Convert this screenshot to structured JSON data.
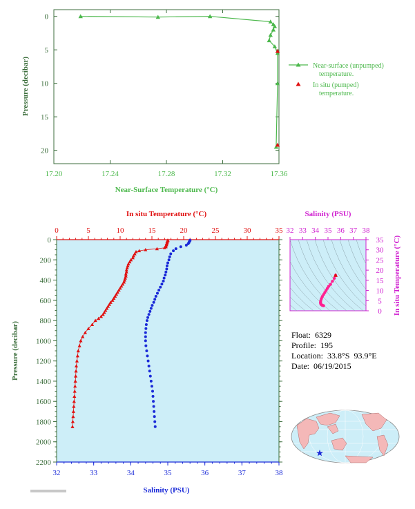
{
  "colors": {
    "green": "#4cb84c",
    "axis_green": "#3c6e3c",
    "red": "#e01010",
    "blue": "#1a2ad8",
    "magenta": "#d020d0",
    "pink": "#ff2090",
    "panel_bg": "#cdeef8",
    "land": "#f4b8b8"
  },
  "top_chart": {
    "xlabel": "Near-Surface Temperature (°C)",
    "ylabel": "Pressure (decibar)",
    "xticks": [
      "17.20",
      "17.24",
      "17.28",
      "17.32",
      "17.36"
    ],
    "yticks": [
      "0",
      "5",
      "10",
      "15",
      "20"
    ],
    "legend": [
      {
        "line1": "Near-surface (unpumped)",
        "line2": "temperature."
      },
      {
        "line1": "In situ (pumped)",
        "line2": "temperature."
      }
    ]
  },
  "bottom_chart": {
    "top_xlabel": "In situ Temperature (°C)",
    "bottom_xlabel": "Salinity (PSU)",
    "ylabel": "Pressure (decibar)",
    "temp_ticks": [
      "0",
      "5",
      "10",
      "15",
      "20",
      "25",
      "30",
      "35"
    ],
    "sal_ticks": [
      "32",
      "33",
      "34",
      "35",
      "36",
      "37",
      "38"
    ],
    "pressure_ticks": [
      "0",
      "200",
      "400",
      "600",
      "800",
      "1000",
      "1200",
      "1400",
      "1600",
      "1800",
      "2000",
      "2200"
    ]
  },
  "ts_chart": {
    "xlabel": "Salinity (PSU)",
    "ylabel": "In situ Temperature (°C)",
    "xticks": [
      "32",
      "33",
      "34",
      "35",
      "36",
      "37",
      "38"
    ],
    "yticks": [
      "0",
      "5",
      "10",
      "15",
      "20",
      "25",
      "30",
      "35"
    ]
  },
  "info": {
    "float": "Float:  6329",
    "profile": "Profile:  195",
    "location": "Location:  33.8°S  93.9°E",
    "date": "Date:  06/19/2015"
  },
  "chart_data": [
    {
      "type": "line",
      "title": "",
      "xlabel": "Near-Surface Temperature (°C)",
      "ylabel": "Pressure (decibar)",
      "xlim": [
        17.2,
        17.36
      ],
      "ylim": [
        22,
        -1
      ],
      "series": [
        {
          "name": "Near-surface (unpumped) temperature.",
          "points": [
            [
              17.219,
              0.0
            ],
            [
              17.274,
              0.1
            ],
            [
              17.311,
              0.0
            ],
            [
              17.354,
              0.8
            ],
            [
              17.356,
              1.2
            ],
            [
              17.357,
              1.5
            ],
            [
              17.356,
              2.0
            ],
            [
              17.354,
              2.8
            ],
            [
              17.353,
              3.6
            ],
            [
              17.357,
              4.5
            ],
            [
              17.359,
              5.5
            ],
            [
              17.359,
              10.0
            ],
            [
              17.358,
              19.5
            ]
          ]
        },
        {
          "name": "In situ (pumped) temperature.",
          "points": [
            [
              17.359,
              5.2
            ],
            [
              17.359,
              19.2
            ]
          ]
        }
      ]
    },
    {
      "type": "scatter",
      "title": "",
      "ylabel": "Pressure (decibar)",
      "ylim": [
        2200,
        0
      ],
      "series": [
        {
          "name": "In situ Temperature (°C)",
          "x_axis": "top",
          "xlim": [
            0,
            35
          ],
          "points": [
            [
              17.5,
              5
            ],
            [
              17.5,
              10
            ],
            [
              17.4,
              20
            ],
            [
              17.4,
              30
            ],
            [
              17.3,
              40
            ],
            [
              17.3,
              50
            ],
            [
              17.2,
              60
            ],
            [
              17.2,
              70
            ],
            [
              17.0,
              80
            ],
            [
              15.8,
              90
            ],
            [
              14.0,
              100
            ],
            [
              13.0,
              110
            ],
            [
              12.5,
              120
            ],
            [
              12.3,
              140
            ],
            [
              12.1,
              160
            ],
            [
              12.0,
              180
            ],
            [
              11.7,
              200
            ],
            [
              11.5,
              220
            ],
            [
              11.3,
              240
            ],
            [
              11.2,
              260
            ],
            [
              11.1,
              280
            ],
            [
              11.0,
              300
            ],
            [
              11.0,
              320
            ],
            [
              10.9,
              340
            ],
            [
              10.9,
              360
            ],
            [
              10.8,
              380
            ],
            [
              10.7,
              400
            ],
            [
              10.6,
              420
            ],
            [
              10.4,
              440
            ],
            [
              10.2,
              460
            ],
            [
              10.0,
              480
            ],
            [
              9.8,
              500
            ],
            [
              9.6,
              520
            ],
            [
              9.4,
              540
            ],
            [
              9.2,
              560
            ],
            [
              9.0,
              580
            ],
            [
              8.8,
              600
            ],
            [
              8.5,
              620
            ],
            [
              8.3,
              640
            ],
            [
              8.1,
              660
            ],
            [
              7.9,
              680
            ],
            [
              7.7,
              700
            ],
            [
              7.5,
              720
            ],
            [
              7.3,
              740
            ],
            [
              7.0,
              760
            ],
            [
              6.6,
              780
            ],
            [
              6.1,
              800
            ],
            [
              5.6,
              840
            ],
            [
              5.0,
              880
            ],
            [
              4.5,
              920
            ],
            [
              4.1,
              960
            ],
            [
              3.8,
              1000
            ],
            [
              3.6,
              1050
            ],
            [
              3.4,
              1100
            ],
            [
              3.3,
              1150
            ],
            [
              3.2,
              1200
            ],
            [
              3.1,
              1250
            ],
            [
              3.05,
              1300
            ],
            [
              3.0,
              1350
            ],
            [
              2.95,
              1400
            ],
            [
              2.9,
              1450
            ],
            [
              2.85,
              1500
            ],
            [
              2.8,
              1550
            ],
            [
              2.75,
              1600
            ],
            [
              2.7,
              1650
            ],
            [
              2.65,
              1700
            ],
            [
              2.6,
              1750
            ],
            [
              2.55,
              1800
            ],
            [
              2.5,
              1850
            ]
          ]
        },
        {
          "name": "Salinity (PSU)",
          "x_axis": "bottom",
          "xlim": [
            32,
            38
          ],
          "points": [
            [
              35.6,
              5
            ],
            [
              35.6,
              10
            ],
            [
              35.58,
              20
            ],
            [
              35.57,
              30
            ],
            [
              35.55,
              40
            ],
            [
              35.5,
              55
            ],
            [
              35.35,
              70
            ],
            [
              35.22,
              90
            ],
            [
              35.15,
              110
            ],
            [
              35.08,
              140
            ],
            [
              35.05,
              170
            ],
            [
              35.03,
              200
            ],
            [
              35.0,
              230
            ],
            [
              34.98,
              260
            ],
            [
              34.97,
              290
            ],
            [
              34.95,
              320
            ],
            [
              34.93,
              350
            ],
            [
              34.9,
              380
            ],
            [
              34.88,
              410
            ],
            [
              34.84,
              440
            ],
            [
              34.8,
              470
            ],
            [
              34.76,
              500
            ],
            [
              34.72,
              530
            ],
            [
              34.68,
              560
            ],
            [
              34.65,
              590
            ],
            [
              34.62,
              620
            ],
            [
              34.58,
              650
            ],
            [
              34.55,
              680
            ],
            [
              34.52,
              710
            ],
            [
              34.49,
              740
            ],
            [
              34.46,
              770
            ],
            [
              34.44,
              800
            ],
            [
              34.42,
              840
            ],
            [
              34.41,
              880
            ],
            [
              34.4,
              920
            ],
            [
              34.4,
              960
            ],
            [
              34.4,
              1000
            ],
            [
              34.41,
              1050
            ],
            [
              34.43,
              1100
            ],
            [
              34.45,
              1150
            ],
            [
              34.47,
              1200
            ],
            [
              34.49,
              1250
            ],
            [
              34.51,
              1300
            ],
            [
              34.53,
              1350
            ],
            [
              34.55,
              1400
            ],
            [
              34.57,
              1450
            ],
            [
              34.59,
              1500
            ],
            [
              34.6,
              1550
            ],
            [
              34.61,
              1600
            ],
            [
              34.62,
              1650
            ],
            [
              34.63,
              1700
            ],
            [
              34.64,
              1750
            ],
            [
              34.65,
              1800
            ],
            [
              34.66,
              1850
            ]
          ]
        }
      ]
    },
    {
      "type": "scatter",
      "title": "",
      "xlabel": "Salinity (PSU)",
      "ylabel": "In situ Temperature (°C)",
      "xlim": [
        32,
        38
      ],
      "ylim": [
        0,
        35
      ],
      "series": [
        {
          "name": "T-S",
          "points": [
            [
              35.6,
              17.5
            ],
            [
              35.5,
              16.0
            ],
            [
              35.35,
              14.5
            ],
            [
              35.2,
              13.0
            ],
            [
              35.05,
              12.0
            ],
            [
              34.95,
              11.0
            ],
            [
              34.85,
              10.0
            ],
            [
              34.75,
              9.0
            ],
            [
              34.65,
              8.0
            ],
            [
              34.55,
              7.0
            ],
            [
              34.48,
              6.0
            ],
            [
              34.43,
              5.0
            ],
            [
              34.41,
              4.2
            ],
            [
              34.42,
              3.6
            ],
            [
              34.45,
              3.2
            ],
            [
              34.5,
              2.9
            ],
            [
              34.55,
              2.7
            ],
            [
              34.6,
              2.6
            ],
            [
              34.65,
              2.5
            ]
          ]
        }
      ]
    }
  ]
}
